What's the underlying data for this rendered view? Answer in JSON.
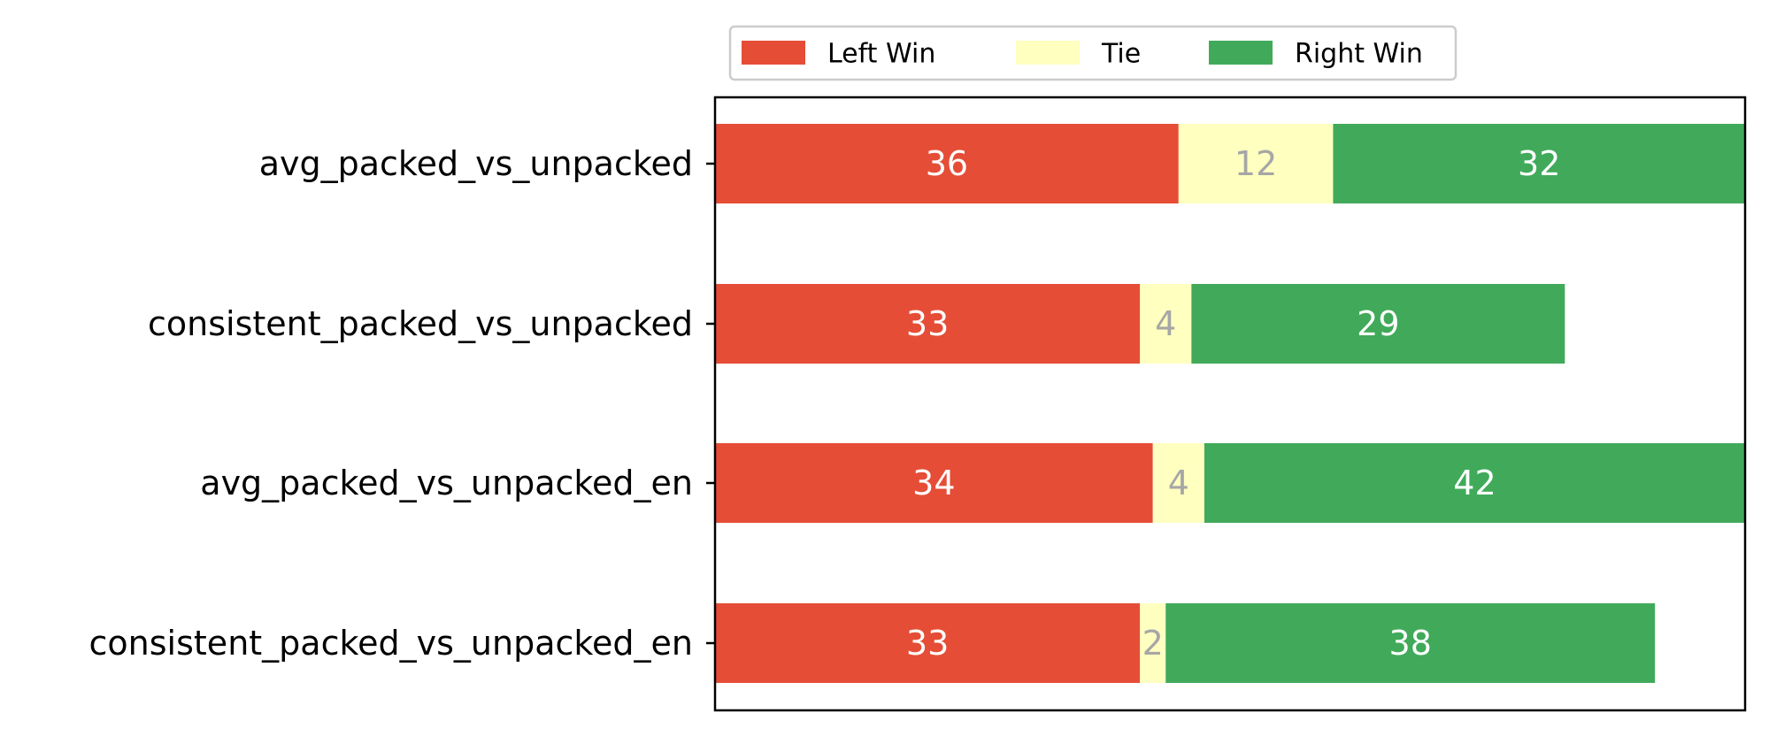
{
  "chart_data": {
    "type": "bar",
    "orientation": "horizontal",
    "stacked": true,
    "categories": [
      "avg_packed_vs_unpacked",
      "consistent_packed_vs_unpacked",
      "avg_packed_vs_unpacked_en",
      "consistent_packed_vs_unpacked_en"
    ],
    "series": [
      {
        "name": "Left Win",
        "color": "#e54d36",
        "label_color": "#ffffff",
        "values": [
          36,
          33,
          34,
          33
        ]
      },
      {
        "name": "Tie",
        "color": "#ffffc0",
        "label_color": "#a6a6a6",
        "values": [
          12,
          4,
          4,
          2
        ]
      },
      {
        "name": "Right Win",
        "color": "#40aa5a",
        "label_color": "#ffffff",
        "values": [
          32,
          29,
          42,
          38
        ]
      }
    ],
    "xlim": [
      0,
      80
    ],
    "title": "",
    "xlabel": "",
    "ylabel": "",
    "grid": false,
    "show_x_ticks": false,
    "legend_position": "top-center"
  }
}
